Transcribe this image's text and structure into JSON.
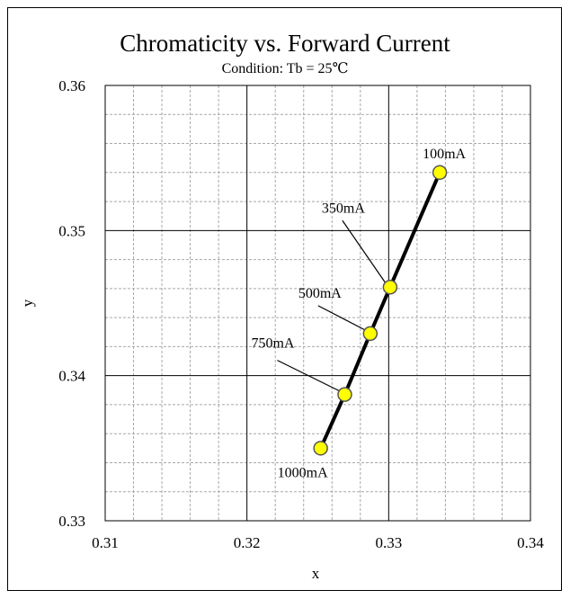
{
  "chart_data": {
    "type": "scatter",
    "title": "Chromaticity vs. Forward Current",
    "subtitle": "Condition: Tb = 25℃",
    "xlabel": "x",
    "ylabel": "y",
    "xlim": [
      0.31,
      0.34
    ],
    "ylim": [
      0.33,
      0.36
    ],
    "xticks": [
      "0.31",
      "0.32",
      "0.33",
      "0.34"
    ],
    "yticks": [
      "0.33",
      "0.34",
      "0.35",
      "0.36"
    ],
    "grid": true,
    "series": [
      {
        "points": [
          {
            "x": 0.3252,
            "y": 0.335,
            "label": "1000mA"
          },
          {
            "x": 0.3269,
            "y": 0.3387,
            "label": "750mA"
          },
          {
            "x": 0.3287,
            "y": 0.3429,
            "label": "500mA"
          },
          {
            "x": 0.3301,
            "y": 0.3461,
            "label": "350mA"
          },
          {
            "x": 0.3336,
            "y": 0.354,
            "label": "100mA"
          }
        ]
      }
    ],
    "colors": {
      "marker_fill": "#ffff00",
      "marker_stroke": "#555555",
      "line": "#000000",
      "major_grid": "#000000",
      "minor_grid": "#a8a8a8"
    }
  }
}
